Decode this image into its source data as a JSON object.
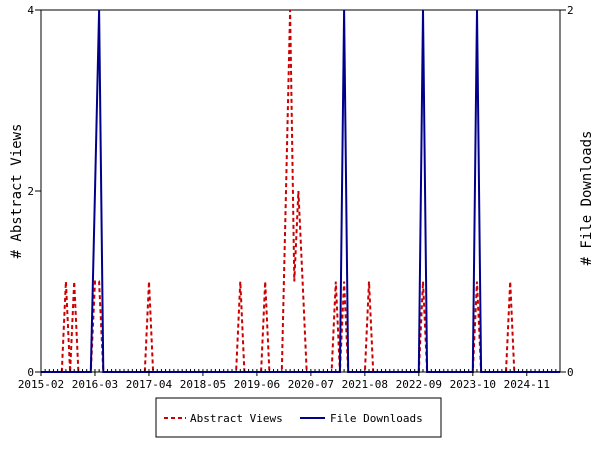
{
  "chart_data": {
    "type": "line",
    "y_left_label": "# Abstract Views",
    "y_right_label": "# File Downloads",
    "y_left_ticks": [
      "0",
      "2",
      "4"
    ],
    "y_right_ticks": [
      "0",
      "2"
    ],
    "y_left_range": [
      0,
      4
    ],
    "y_right_range": [
      0,
      2
    ],
    "x_range": [
      "2015-02",
      "2025-07"
    ],
    "x_ticks": [
      "2015-02",
      "2016-03",
      "2017-04",
      "2018-05",
      "2019-06",
      "2020-07",
      "2021-08",
      "2022-09",
      "2023-10",
      "2024-11"
    ],
    "grid": false,
    "legend_position": "bottom",
    "series": [
      {
        "name": "Abstract Views",
        "axis": "left",
        "color": "#cc0000",
        "style": "dashed",
        "points": [
          [
            "2015-02",
            0
          ],
          [
            "2015-07",
            0
          ],
          [
            "2015-08",
            1
          ],
          [
            "2015-09",
            0
          ],
          [
            "2015-10",
            1
          ],
          [
            "2015-11",
            0
          ],
          [
            "2016-02",
            0
          ],
          [
            "2016-03",
            1
          ],
          [
            "2016-04",
            1
          ],
          [
            "2016-05",
            0
          ],
          [
            "2017-03",
            0
          ],
          [
            "2017-04",
            1
          ],
          [
            "2017-05",
            0
          ],
          [
            "2019-01",
            0
          ],
          [
            "2019-02",
            1
          ],
          [
            "2019-03",
            0
          ],
          [
            "2019-07",
            0
          ],
          [
            "2019-08",
            1
          ],
          [
            "2019-09",
            0
          ],
          [
            "2019-12",
            0
          ],
          [
            "2020-01",
            2
          ],
          [
            "2020-02",
            4
          ],
          [
            "2020-03",
            1
          ],
          [
            "2020-04",
            2
          ],
          [
            "2020-05",
            1
          ],
          [
            "2020-06",
            0
          ],
          [
            "2020-12",
            0
          ],
          [
            "2021-01",
            1
          ],
          [
            "2021-02",
            0
          ],
          [
            "2021-03",
            1
          ],
          [
            "2021-04",
            0
          ],
          [
            "2021-08",
            0
          ],
          [
            "2021-09",
            1
          ],
          [
            "2021-10",
            0
          ],
          [
            "2022-09",
            0
          ],
          [
            "2022-10",
            1
          ],
          [
            "2022-11",
            0
          ],
          [
            "2023-10",
            0
          ],
          [
            "2023-11",
            1
          ],
          [
            "2023-12",
            0
          ],
          [
            "2024-06",
            0
          ],
          [
            "2024-07",
            1
          ],
          [
            "2024-08",
            0
          ],
          [
            "2025-07",
            0
          ]
        ]
      },
      {
        "name": "File Downloads",
        "axis": "right",
        "color": "#00008b",
        "style": "solid",
        "points": [
          [
            "2015-02",
            0
          ],
          [
            "2016-02",
            0
          ],
          [
            "2016-03",
            1
          ],
          [
            "2016-04",
            2
          ],
          [
            "2016-05",
            0
          ],
          [
            "2021-02",
            0
          ],
          [
            "2021-03",
            2
          ],
          [
            "2021-04",
            0
          ],
          [
            "2022-09",
            0
          ],
          [
            "2022-10",
            2
          ],
          [
            "2022-11",
            0
          ],
          [
            "2023-10",
            0
          ],
          [
            "2023-11",
            2
          ],
          [
            "2023-12",
            0
          ],
          [
            "2025-07",
            0
          ]
        ]
      }
    ]
  },
  "legend": {
    "items": [
      {
        "label": "Abstract Views",
        "color": "#cc0000",
        "style": "dashed"
      },
      {
        "label": "File Downloads",
        "color": "#00008b",
        "style": "solid"
      }
    ]
  }
}
